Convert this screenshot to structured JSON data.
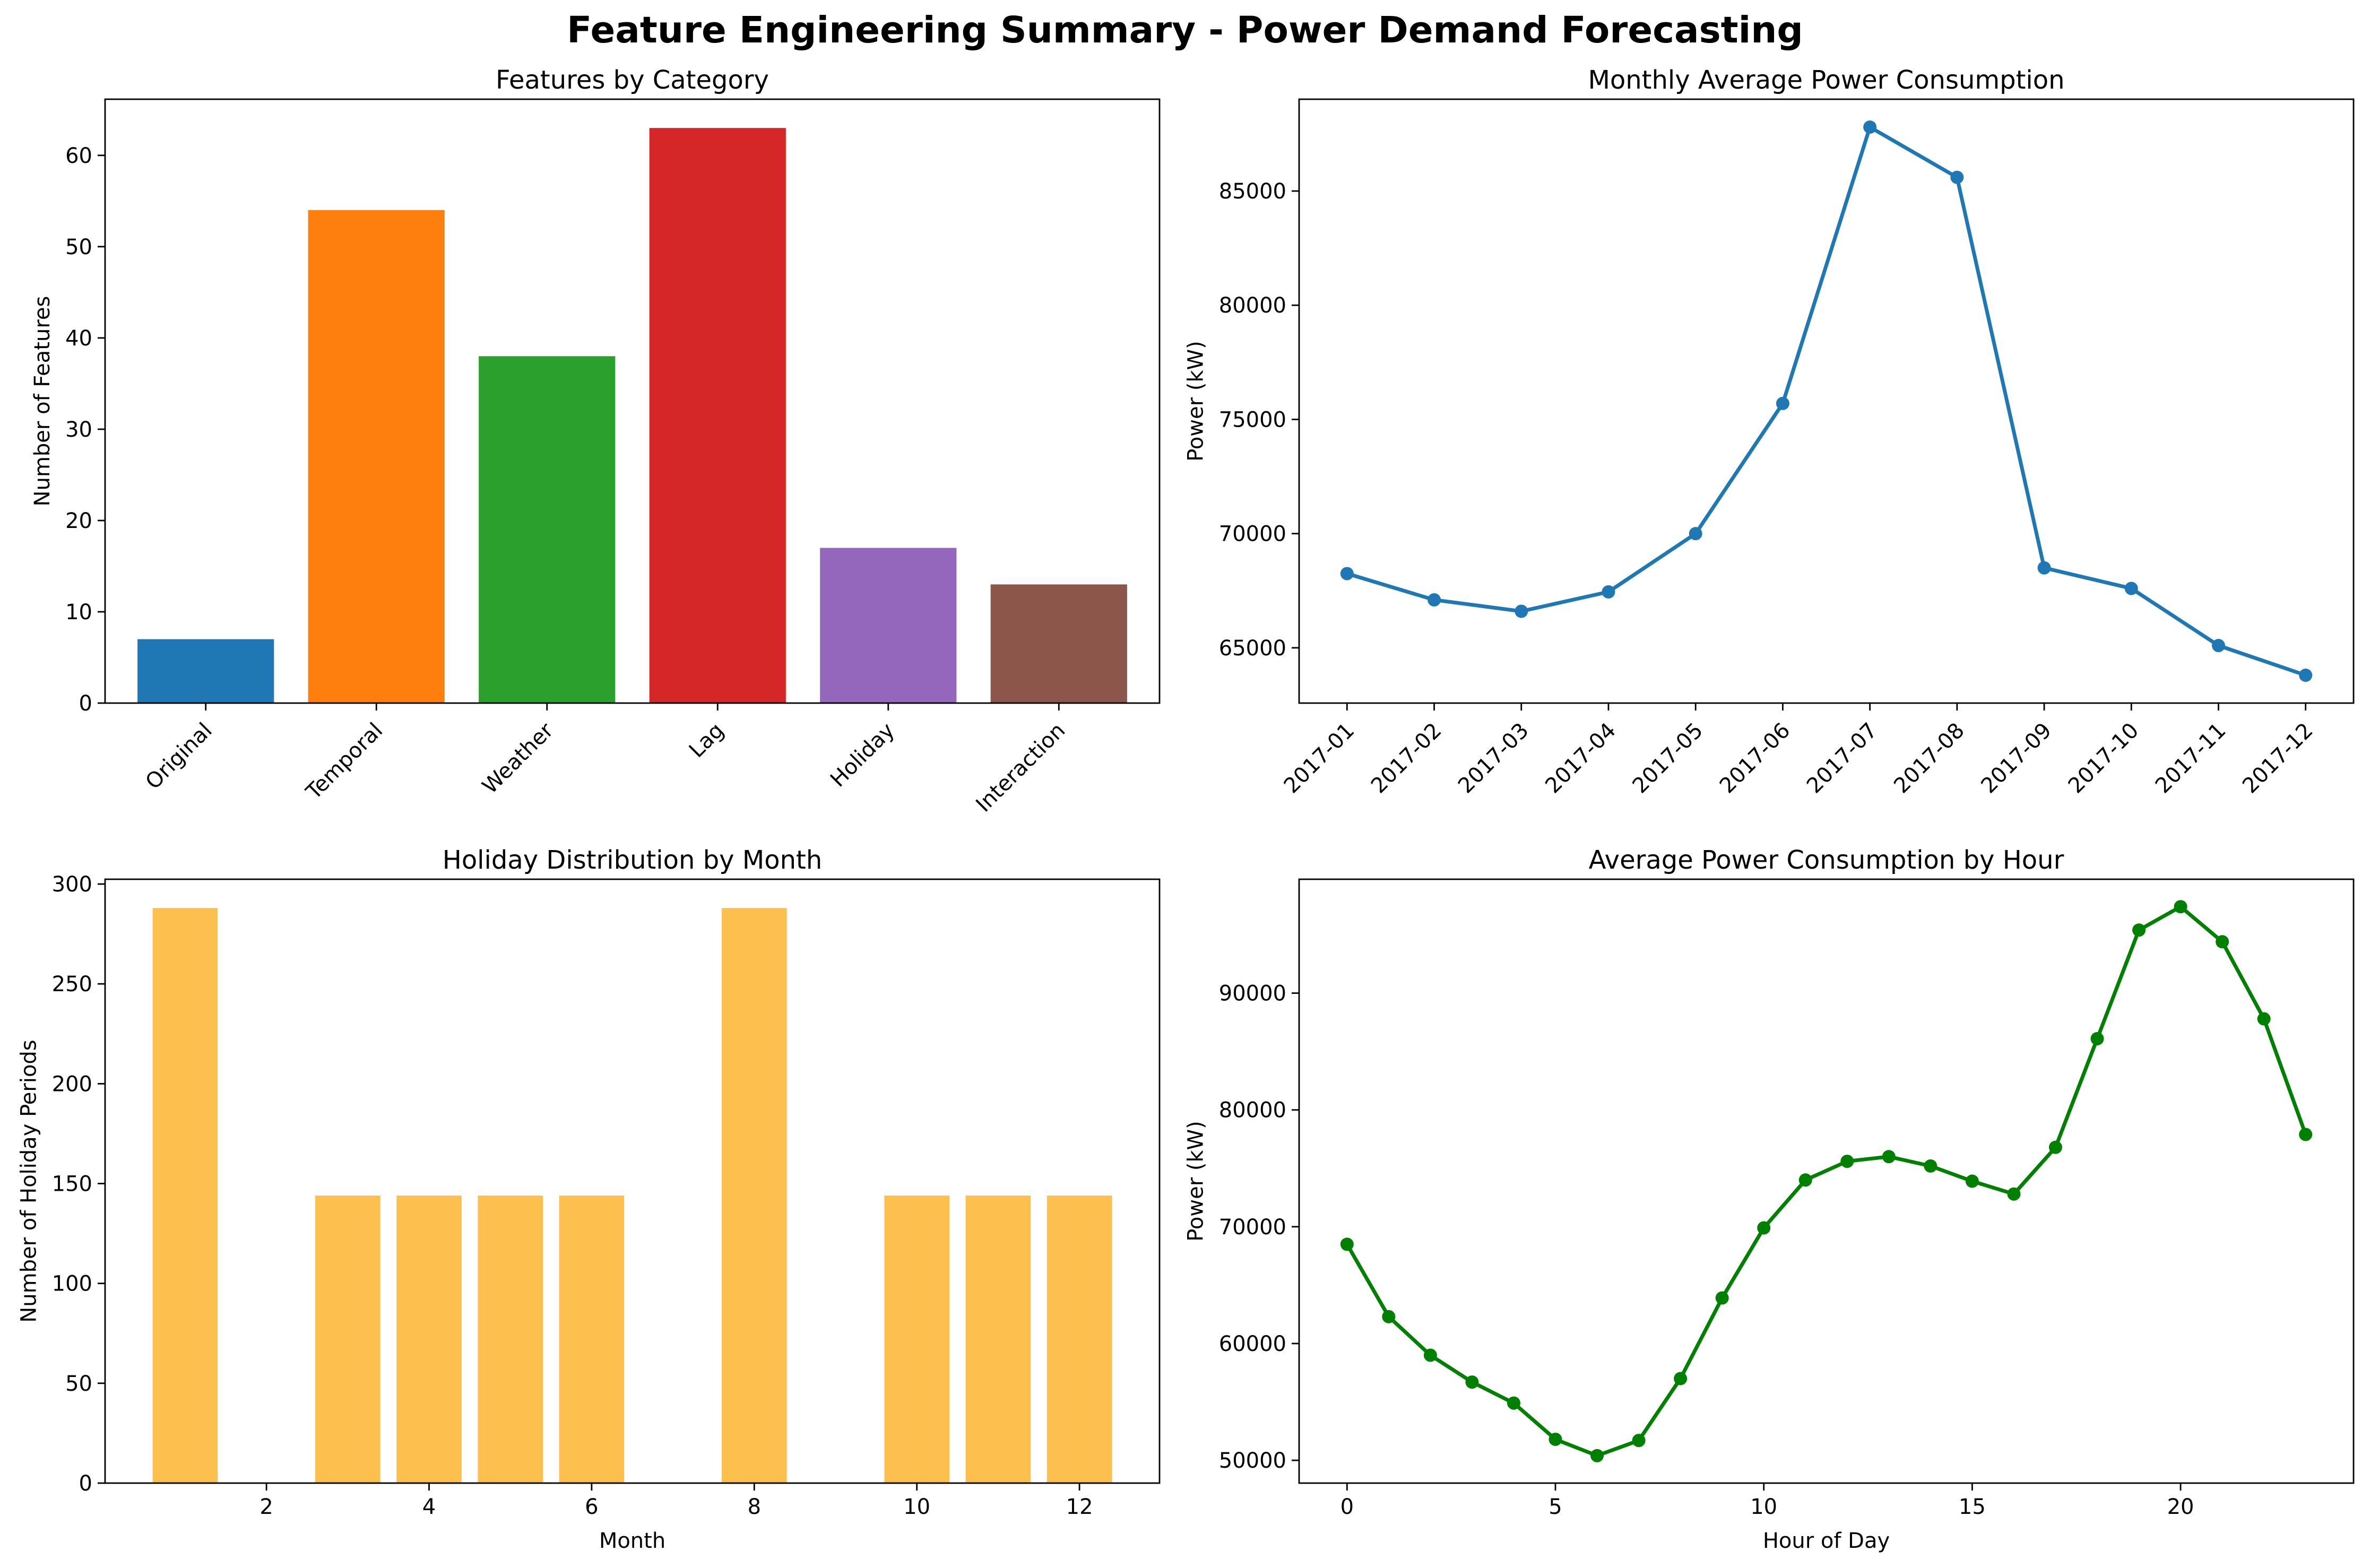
{
  "suptitle": "Feature Engineering Summary - Power Demand Forecasting",
  "chart_data": [
    {
      "type": "bar",
      "title": "Features by Category",
      "xlabel": "",
      "ylabel": "Number of Features",
      "categories": [
        "Original",
        "Temporal",
        "Weather",
        "Lag",
        "Holiday",
        "Interaction"
      ],
      "values": [
        7,
        54,
        38,
        63,
        17,
        13
      ],
      "colors": [
        "#1f77b4",
        "#ff7f0e",
        "#2ca02c",
        "#d62728",
        "#9467bd",
        "#8c564b"
      ],
      "ylim": [
        0,
        66.15
      ],
      "yticks": [
        0,
        10,
        20,
        30,
        40,
        50,
        60
      ],
      "xtick_rotation": 45,
      "grid": false
    },
    {
      "type": "line",
      "title": "Monthly Average Power Consumption",
      "xlabel": "",
      "ylabel": "Power (kW)",
      "x": [
        "2017-01",
        "2017-02",
        "2017-03",
        "2017-04",
        "2017-05",
        "2017-06",
        "2017-07",
        "2017-08",
        "2017-09",
        "2017-10",
        "2017-11",
        "2017-12"
      ],
      "series": [
        {
          "values": [
            68250,
            67100,
            66600,
            67450,
            70000,
            75700,
            87800,
            85600,
            68500,
            67600,
            65100,
            63800
          ],
          "color": "#1f77b4"
        }
      ],
      "ylim": [
        62580,
        89020
      ],
      "yticks": [
        65000,
        70000,
        75000,
        80000,
        85000
      ],
      "xtick_rotation": 45,
      "marker": "circle",
      "grid": false
    },
    {
      "type": "bar",
      "title": "Holiday Distribution by Month",
      "xlabel": "Month",
      "ylabel": "Number of Holiday Periods",
      "x": [
        1,
        2,
        3,
        4,
        5,
        6,
        7,
        8,
        9,
        10,
        11,
        12
      ],
      "values": [
        288,
        0,
        144,
        144,
        144,
        144,
        0,
        288,
        0,
        144,
        144,
        144
      ],
      "bar_color": "#fdbf4e",
      "xlim": [
        0.015,
        12.985
      ],
      "xticks": [
        2,
        4,
        6,
        8,
        10,
        12
      ],
      "ylim": [
        0,
        302.4
      ],
      "yticks": [
        0,
        50,
        100,
        150,
        200,
        250,
        300
      ],
      "grid": false
    },
    {
      "type": "line",
      "title": "Average Power Consumption by Hour",
      "xlabel": "Hour of Day",
      "ylabel": "Power (kW)",
      "x": [
        0,
        1,
        2,
        3,
        4,
        5,
        6,
        7,
        8,
        9,
        10,
        11,
        12,
        13,
        14,
        15,
        16,
        17,
        18,
        19,
        20,
        21,
        22,
        23
      ],
      "series": [
        {
          "values": [
            68500,
            62300,
            59000,
            56700,
            54900,
            51800,
            50400,
            51700,
            57000,
            63900,
            69900,
            74000,
            75600,
            76000,
            75200,
            73900,
            72800,
            76800,
            86100,
            95400,
            97400,
            94400,
            87800,
            77900
          ],
          "color": "#008000"
        }
      ],
      "xlim": [
        -1.15,
        24.15
      ],
      "xticks": [
        0,
        5,
        10,
        15,
        20
      ],
      "ylim": [
        48050,
        99750
      ],
      "yticks": [
        50000,
        60000,
        70000,
        80000,
        90000
      ],
      "marker": "circle",
      "grid": false
    }
  ]
}
